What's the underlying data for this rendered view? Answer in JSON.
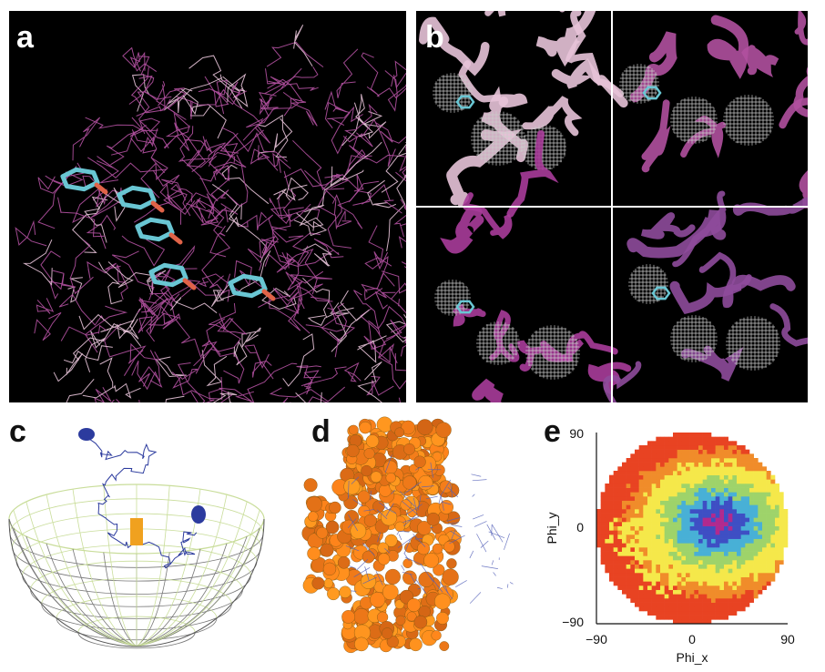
{
  "figure": {
    "panels": {
      "a": {
        "label": "a"
      },
      "b": {
        "label": "b"
      },
      "c": {
        "label": "c"
      },
      "d": {
        "label": "d"
      },
      "e": {
        "label": "e"
      }
    }
  },
  "colors": {
    "background_dark": "#000000",
    "protein_magenta": "#b0509f",
    "protein_light_pink": "#e7c3d8",
    "ligand_cyan": "#69c6d3",
    "ligand_red": "#e06348",
    "mesh_grey": "#cccccc",
    "hemisphere_yellow_green": "#c9dd9a",
    "trajectory_blue": "#2c3b9e",
    "molecule_gold": "#d99a2b",
    "mesh_blue": "#5460b8"
  },
  "chart_data": {
    "type": "heatmap",
    "title": "",
    "xlabel": "Phi_x",
    "ylabel": "Phi_y",
    "x_ticks": [
      "−90",
      "0",
      "90"
    ],
    "y_ticks": [
      "90",
      "0",
      "−90"
    ],
    "xlim": [
      -90,
      90
    ],
    "ylim": [
      -90,
      90
    ],
    "shape": "disk",
    "density_peak": [
      25,
      5
    ],
    "color_levels": [
      "#e84322",
      "#f08c2a",
      "#f5e84a",
      "#9ed36a",
      "#48b0d6",
      "#3e4fc4",
      "#b12a8e"
    ]
  }
}
